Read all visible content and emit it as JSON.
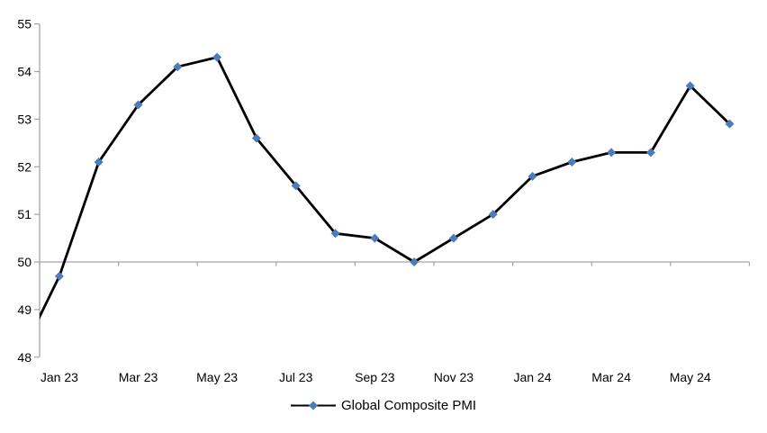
{
  "chart_data": {
    "type": "line",
    "title": "",
    "categories": [
      "Dec 22",
      "Jan 23",
      "Feb 23",
      "Mar 23",
      "Apr 23",
      "May 23",
      "Jun 23",
      "Jul 23",
      "Aug 23",
      "Sep 23",
      "Oct 23",
      "Nov 23",
      "Dec 23",
      "Jan 24",
      "Feb 24",
      "Mar 24",
      "Apr 24",
      "May 24",
      "Jun 24"
    ],
    "series": [
      {
        "name": "Global Composite PMI",
        "values": [
          48.0,
          49.7,
          52.1,
          53.3,
          54.1,
          54.3,
          52.6,
          51.6,
          50.6,
          50.5,
          50.0,
          50.5,
          51.0,
          51.8,
          52.1,
          52.3,
          52.3,
          53.7,
          52.9
        ]
      }
    ],
    "first_point_clipped_at_left_edge": true,
    "ylim": [
      48,
      55
    ],
    "y_tick_step": 1,
    "y_tick_labels": [
      "48",
      "49",
      "50",
      "51",
      "52",
      "53",
      "54",
      "55"
    ],
    "x_tick_labels": [
      "Jan 23",
      "Mar 23",
      "May 23",
      "Jul 23",
      "Sep 23",
      "Nov 23",
      "Jan 24",
      "Mar 24",
      "May 24"
    ],
    "x_label_starts_at_category_index": 1,
    "x_label_interval": 2,
    "x_axis_crosses_at": 50,
    "gridlines": "none",
    "legend_position": "bottom-center",
    "marker_shape": "diamond",
    "colors": {
      "line": "#000000",
      "marker": "#4a7ebb",
      "axis": "#a3a3a3",
      "text": "#000000",
      "background": "#ffffff"
    }
  }
}
